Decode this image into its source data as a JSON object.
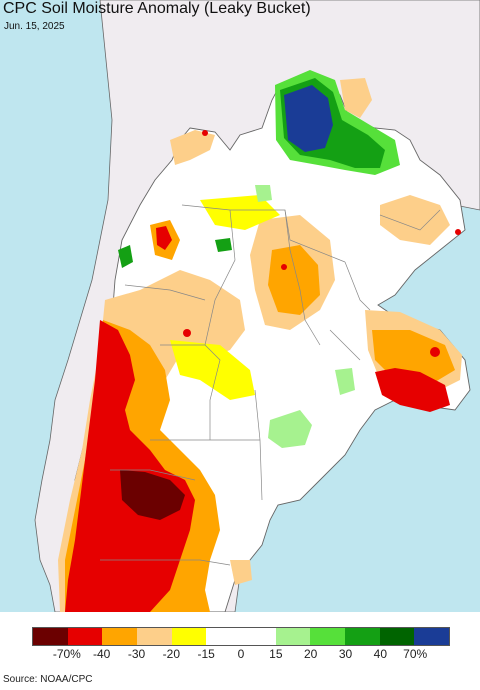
{
  "header": {
    "title": "CPC Soil Moisture Anomaly (Leaky Bucket)",
    "date": "Jun. 15, 2025"
  },
  "legend": {
    "colors": [
      "#6b0000",
      "#e60000",
      "#ffa500",
      "#fdcf8a",
      "#ffff00",
      "#ffffff",
      "#ffffff",
      "#a6f28f",
      "#56e03a",
      "#14a014",
      "#006400",
      "#1a3c96"
    ],
    "labels": [
      "-70%",
      "-40",
      "-30",
      "-20",
      "-15",
      "0",
      "15",
      "20",
      "30",
      "40",
      "70%"
    ]
  },
  "footer": {
    "source": "Source: NOAA/CPC"
  },
  "map": {
    "colors": {
      "ocean": "#bfe6ef",
      "other_land": "#f0ecf0",
      "land": "#ffffff",
      "border": "#777777"
    }
  }
}
